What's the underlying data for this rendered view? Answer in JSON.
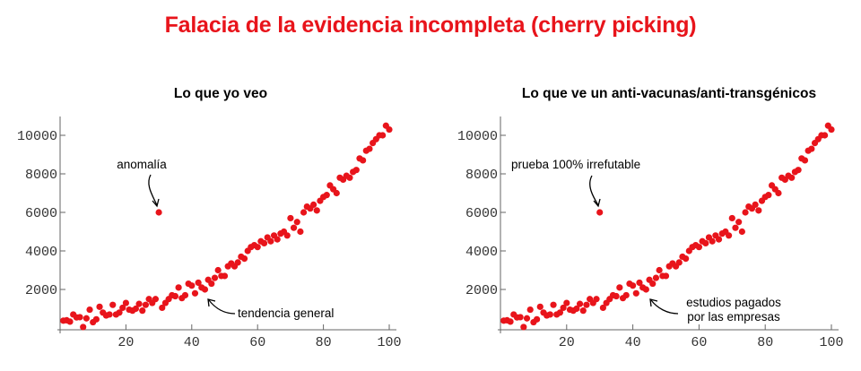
{
  "title": "Falacia de la evidencia incompleta (cherry picking)",
  "colors": {
    "title": "#e8141b",
    "points": "#e8141b"
  },
  "chart_data": [
    {
      "type": "scatter",
      "title": "Lo que yo veo",
      "xlim": [
        0,
        102
      ],
      "ylim": [
        -300,
        11000
      ],
      "xticks": [
        20,
        40,
        60,
        80,
        100
      ],
      "yticks": [
        2000,
        4000,
        6000,
        8000,
        10000
      ],
      "grid": false,
      "annotations": [
        {
          "text": "anomalía",
          "point": [
            30,
            6000
          ]
        },
        {
          "text": "tendencia general",
          "point": [
            45,
            1600
          ]
        }
      ]
    },
    {
      "type": "scatter",
      "title": "Lo que ve un anti-vacunas/anti-transgénicos",
      "xlim": [
        0,
        102
      ],
      "ylim": [
        -300,
        11000
      ],
      "xticks": [
        20,
        40,
        60,
        80,
        100
      ],
      "yticks": [
        2000,
        4000,
        6000,
        8000,
        10000
      ],
      "grid": false,
      "annotations": [
        {
          "text": "prueba 100% irrefutable",
          "point": [
            30,
            6000
          ]
        },
        {
          "text": "estudios pagados",
          "text2": "por las empresas",
          "point": [
            45,
            1600
          ]
        }
      ]
    }
  ],
  "series": {
    "x": [
      1,
      2,
      3,
      4,
      5,
      6,
      7,
      8,
      9,
      10,
      11,
      12,
      13,
      14,
      15,
      16,
      17,
      18,
      19,
      20,
      21,
      22,
      23,
      24,
      25,
      26,
      27,
      28,
      29,
      30,
      31,
      32,
      33,
      34,
      35,
      36,
      37,
      38,
      39,
      40,
      41,
      42,
      43,
      44,
      45,
      46,
      47,
      48,
      49,
      50,
      51,
      52,
      53,
      54,
      55,
      56,
      57,
      58,
      59,
      60,
      61,
      62,
      63,
      64,
      65,
      66,
      67,
      68,
      69,
      70,
      71,
      72,
      73,
      74,
      75,
      76,
      77,
      78,
      79,
      80,
      81,
      82,
      83,
      84,
      85,
      86,
      87,
      88,
      89,
      90,
      91,
      92,
      93,
      94,
      95,
      96,
      97,
      98,
      99,
      100
    ],
    "y": [
      380,
      400,
      330,
      700,
      550,
      560,
      50,
      500,
      950,
      300,
      450,
      1100,
      800,
      650,
      700,
      1200,
      700,
      800,
      1050,
      1300,
      950,
      900,
      1000,
      1250,
      900,
      1200,
      1500,
      1300,
      1500,
      6000,
      1050,
      1300,
      1500,
      1700,
      1650,
      2100,
      1550,
      1700,
      2300,
      2200,
      1800,
      2350,
      2100,
      2000,
      2500,
      2300,
      2600,
      3000,
      2700,
      2700,
      3200,
      3350,
      3200,
      3400,
      3700,
      3600,
      4000,
      4200,
      4300,
      4200,
      4500,
      4400,
      4700,
      4500,
      4800,
      4600,
      4900,
      5000,
      4800,
      5700,
      5200,
      5500,
      5000,
      6000,
      6300,
      6200,
      6400,
      6100,
      6600,
      6800,
      6900,
      7400,
      7200,
      7000,
      7800,
      7700,
      7900,
      7800,
      8100,
      8200,
      8800,
      8700,
      9200,
      9300,
      9600,
      9800,
      10000,
      10000,
      10500,
      10300
    ]
  }
}
